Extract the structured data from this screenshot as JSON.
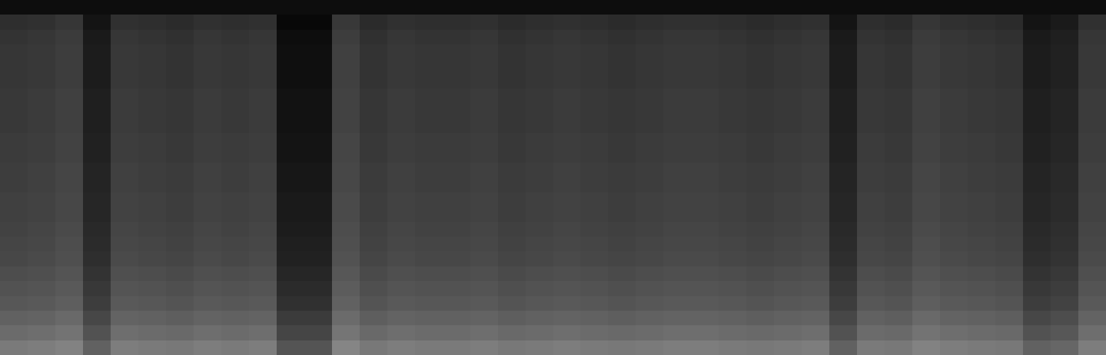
{
  "chart_data": {
    "type": "heatmap",
    "tick_labels": false,
    "grid": false,
    "colors": [
      "#000000",
      "#ffffff"
    ],
    "zlim": [
      0,
      100
    ],
    "cells": [
      [
        48,
        49,
        51,
        38,
        49,
        48,
        47,
        49,
        48,
        49,
        33,
        33,
        52,
        47,
        49,
        48,
        48,
        49,
        47,
        48,
        49,
        48,
        47,
        48,
        49,
        49,
        48,
        47,
        48,
        49,
        38,
        48,
        47,
        51,
        49,
        48,
        47,
        38,
        40,
        49
      ],
      [
        42,
        43,
        45,
        32,
        43,
        42,
        41,
        43,
        42,
        43,
        27,
        27,
        46,
        41,
        43,
        42,
        42,
        43,
        41,
        42,
        43,
        42,
        41,
        42,
        43,
        43,
        42,
        41,
        42,
        43,
        32,
        42,
        41,
        45,
        43,
        42,
        41,
        32,
        34,
        43
      ],
      [
        38,
        39,
        41,
        28,
        39,
        38,
        37,
        39,
        38,
        39,
        23,
        23,
        42,
        37,
        39,
        38,
        38,
        39,
        37,
        38,
        39,
        38,
        37,
        38,
        39,
        39,
        38,
        37,
        38,
        39,
        28,
        38,
        37,
        41,
        39,
        38,
        37,
        28,
        30,
        39
      ],
      [
        34,
        35,
        37,
        24,
        35,
        34,
        33,
        35,
        34,
        35,
        19,
        19,
        38,
        33,
        35,
        34,
        34,
        35,
        33,
        34,
        35,
        34,
        33,
        34,
        35,
        35,
        34,
        33,
        34,
        35,
        24,
        34,
        33,
        37,
        35,
        34,
        33,
        24,
        26,
        35
      ],
      [
        32,
        33,
        35,
        22,
        33,
        32,
        31,
        33,
        32,
        33,
        17,
        17,
        36,
        31,
        33,
        32,
        32,
        33,
        31,
        32,
        33,
        32,
        31,
        32,
        33,
        33,
        32,
        31,
        32,
        33,
        22,
        32,
        31,
        35,
        33,
        32,
        31,
        22,
        24,
        33
      ],
      [
        30,
        31,
        33,
        20,
        31,
        30,
        29,
        31,
        30,
        31,
        15,
        15,
        34,
        29,
        31,
        30,
        30,
        31,
        29,
        30,
        31,
        30,
        29,
        30,
        31,
        31,
        30,
        29,
        30,
        31,
        20,
        30,
        29,
        33,
        31,
        30,
        29,
        20,
        22,
        31
      ],
      [
        28,
        29,
        31,
        18,
        29,
        28,
        27,
        29,
        28,
        29,
        13,
        13,
        32,
        27,
        29,
        28,
        28,
        29,
        27,
        28,
        29,
        28,
        27,
        28,
        29,
        29,
        28,
        27,
        28,
        29,
        18,
        28,
        27,
        31,
        29,
        28,
        27,
        18,
        20,
        29
      ],
      [
        27,
        28,
        30,
        17,
        28,
        27,
        26,
        28,
        27,
        28,
        12,
        12,
        31,
        26,
        28,
        27,
        27,
        28,
        26,
        27,
        28,
        27,
        26,
        27,
        28,
        28,
        27,
        26,
        27,
        28,
        17,
        27,
        26,
        30,
        28,
        27,
        26,
        17,
        19,
        28
      ],
      [
        26,
        27,
        29,
        16,
        27,
        26,
        25,
        27,
        26,
        27,
        11,
        11,
        30,
        25,
        27,
        26,
        26,
        27,
        25,
        26,
        27,
        26,
        25,
        26,
        27,
        27,
        26,
        25,
        26,
        27,
        16,
        26,
        25,
        29,
        27,
        26,
        25,
        16,
        18,
        27
      ],
      [
        25,
        26,
        28,
        15,
        26,
        25,
        24,
        26,
        25,
        26,
        10,
        10,
        29,
        24,
        26,
        25,
        25,
        26,
        24,
        25,
        26,
        25,
        24,
        25,
        26,
        26,
        25,
        24,
        25,
        26,
        15,
        25,
        24,
        28,
        26,
        25,
        24,
        15,
        17,
        26
      ],
      [
        25,
        26,
        28,
        15,
        26,
        25,
        24,
        26,
        25,
        26,
        10,
        10,
        29,
        24,
        26,
        25,
        25,
        26,
        24,
        25,
        26,
        25,
        24,
        25,
        26,
        26,
        25,
        24,
        25,
        26,
        15,
        25,
        24,
        28,
        26,
        25,
        24,
        15,
        17,
        26
      ],
      [
        24,
        25,
        27,
        14,
        25,
        24,
        23,
        25,
        24,
        25,
        9,
        9,
        28,
        23,
        25,
        24,
        24,
        25,
        23,
        24,
        25,
        24,
        23,
        24,
        25,
        25,
        24,
        23,
        24,
        25,
        14,
        24,
        23,
        27,
        25,
        24,
        23,
        14,
        16,
        25
      ],
      [
        24,
        25,
        27,
        14,
        25,
        24,
        23,
        25,
        24,
        25,
        9,
        9,
        28,
        23,
        25,
        24,
        24,
        25,
        23,
        24,
        25,
        24,
        23,
        24,
        25,
        25,
        24,
        23,
        24,
        25,
        14,
        24,
        23,
        27,
        25,
        24,
        23,
        14,
        16,
        25
      ],
      [
        23,
        24,
        26,
        13,
        24,
        23,
        22,
        24,
        23,
        24,
        8,
        8,
        27,
        22,
        24,
        23,
        23,
        24,
        22,
        23,
        24,
        23,
        22,
        23,
        24,
        24,
        23,
        22,
        23,
        24,
        13,
        23,
        22,
        26,
        24,
        23,
        22,
        13,
        15,
        24
      ],
      [
        23,
        24,
        26,
        13,
        24,
        23,
        22,
        24,
        23,
        24,
        8,
        8,
        27,
        22,
        24,
        23,
        23,
        24,
        22,
        23,
        24,
        23,
        22,
        23,
        24,
        24,
        23,
        22,
        23,
        24,
        13,
        23,
        22,
        26,
        24,
        23,
        22,
        13,
        15,
        24
      ],
      [
        22,
        23,
        25,
        12,
        23,
        22,
        21,
        23,
        22,
        23,
        7,
        7,
        26,
        21,
        23,
        22,
        22,
        23,
        21,
        22,
        23,
        22,
        21,
        22,
        23,
        23,
        22,
        21,
        22,
        23,
        12,
        22,
        21,
        25,
        23,
        22,
        21,
        12,
        14,
        23
      ],
      [
        22,
        23,
        25,
        12,
        23,
        22,
        21,
        23,
        22,
        23,
        7,
        7,
        26,
        21,
        23,
        22,
        22,
        23,
        21,
        22,
        23,
        22,
        21,
        22,
        23,
        23,
        22,
        21,
        22,
        23,
        12,
        22,
        21,
        25,
        23,
        22,
        21,
        12,
        14,
        23
      ],
      [
        22,
        23,
        25,
        12,
        23,
        22,
        21,
        23,
        22,
        23,
        7,
        7,
        26,
        21,
        23,
        22,
        22,
        23,
        21,
        22,
        23,
        22,
        21,
        22,
        23,
        23,
        22,
        21,
        22,
        23,
        12,
        22,
        21,
        25,
        23,
        22,
        21,
        12,
        14,
        23
      ],
      [
        21,
        22,
        24,
        11,
        22,
        21,
        20,
        22,
        21,
        22,
        6,
        6,
        25,
        20,
        22,
        21,
        21,
        22,
        20,
        21,
        22,
        21,
        20,
        21,
        22,
        22,
        21,
        20,
        21,
        22,
        11,
        21,
        20,
        24,
        22,
        21,
        20,
        11,
        13,
        22
      ],
      [
        21,
        22,
        24,
        11,
        22,
        21,
        20,
        22,
        21,
        22,
        6,
        6,
        25,
        20,
        22,
        21,
        21,
        22,
        20,
        21,
        22,
        21,
        20,
        21,
        22,
        22,
        21,
        20,
        21,
        22,
        11,
        21,
        20,
        24,
        22,
        21,
        20,
        11,
        13,
        22
      ],
      [
        21,
        22,
        24,
        11,
        22,
        21,
        20,
        22,
        21,
        22,
        6,
        6,
        25,
        20,
        22,
        21,
        21,
        22,
        20,
        21,
        22,
        21,
        20,
        21,
        22,
        22,
        21,
        20,
        21,
        22,
        11,
        21,
        20,
        24,
        22,
        21,
        20,
        11,
        13,
        22
      ],
      [
        20,
        21,
        23,
        10,
        21,
        20,
        19,
        21,
        20,
        21,
        5,
        5,
        24,
        19,
        21,
        20,
        20,
        21,
        19,
        20,
        21,
        20,
        19,
        20,
        21,
        21,
        20,
        19,
        20,
        21,
        10,
        20,
        19,
        23,
        21,
        20,
        19,
        10,
        12,
        21
      ],
      [
        18,
        19,
        21,
        8,
        19,
        18,
        17,
        19,
        18,
        19,
        3,
        3,
        22,
        17,
        19,
        18,
        18,
        19,
        17,
        18,
        19,
        18,
        17,
        18,
        19,
        19,
        18,
        17,
        18,
        19,
        8,
        18,
        17,
        21,
        19,
        18,
        17,
        8,
        10,
        19
      ],
      [
        5,
        5,
        5,
        5,
        5,
        5,
        5,
        5,
        5,
        5,
        5,
        5,
        5,
        5,
        5,
        5,
        5,
        5,
        5,
        5,
        5,
        5,
        5,
        5,
        5,
        5,
        5,
        5,
        5,
        5,
        5,
        5,
        5,
        5,
        5,
        5,
        5,
        5,
        5,
        5
      ]
    ]
  }
}
